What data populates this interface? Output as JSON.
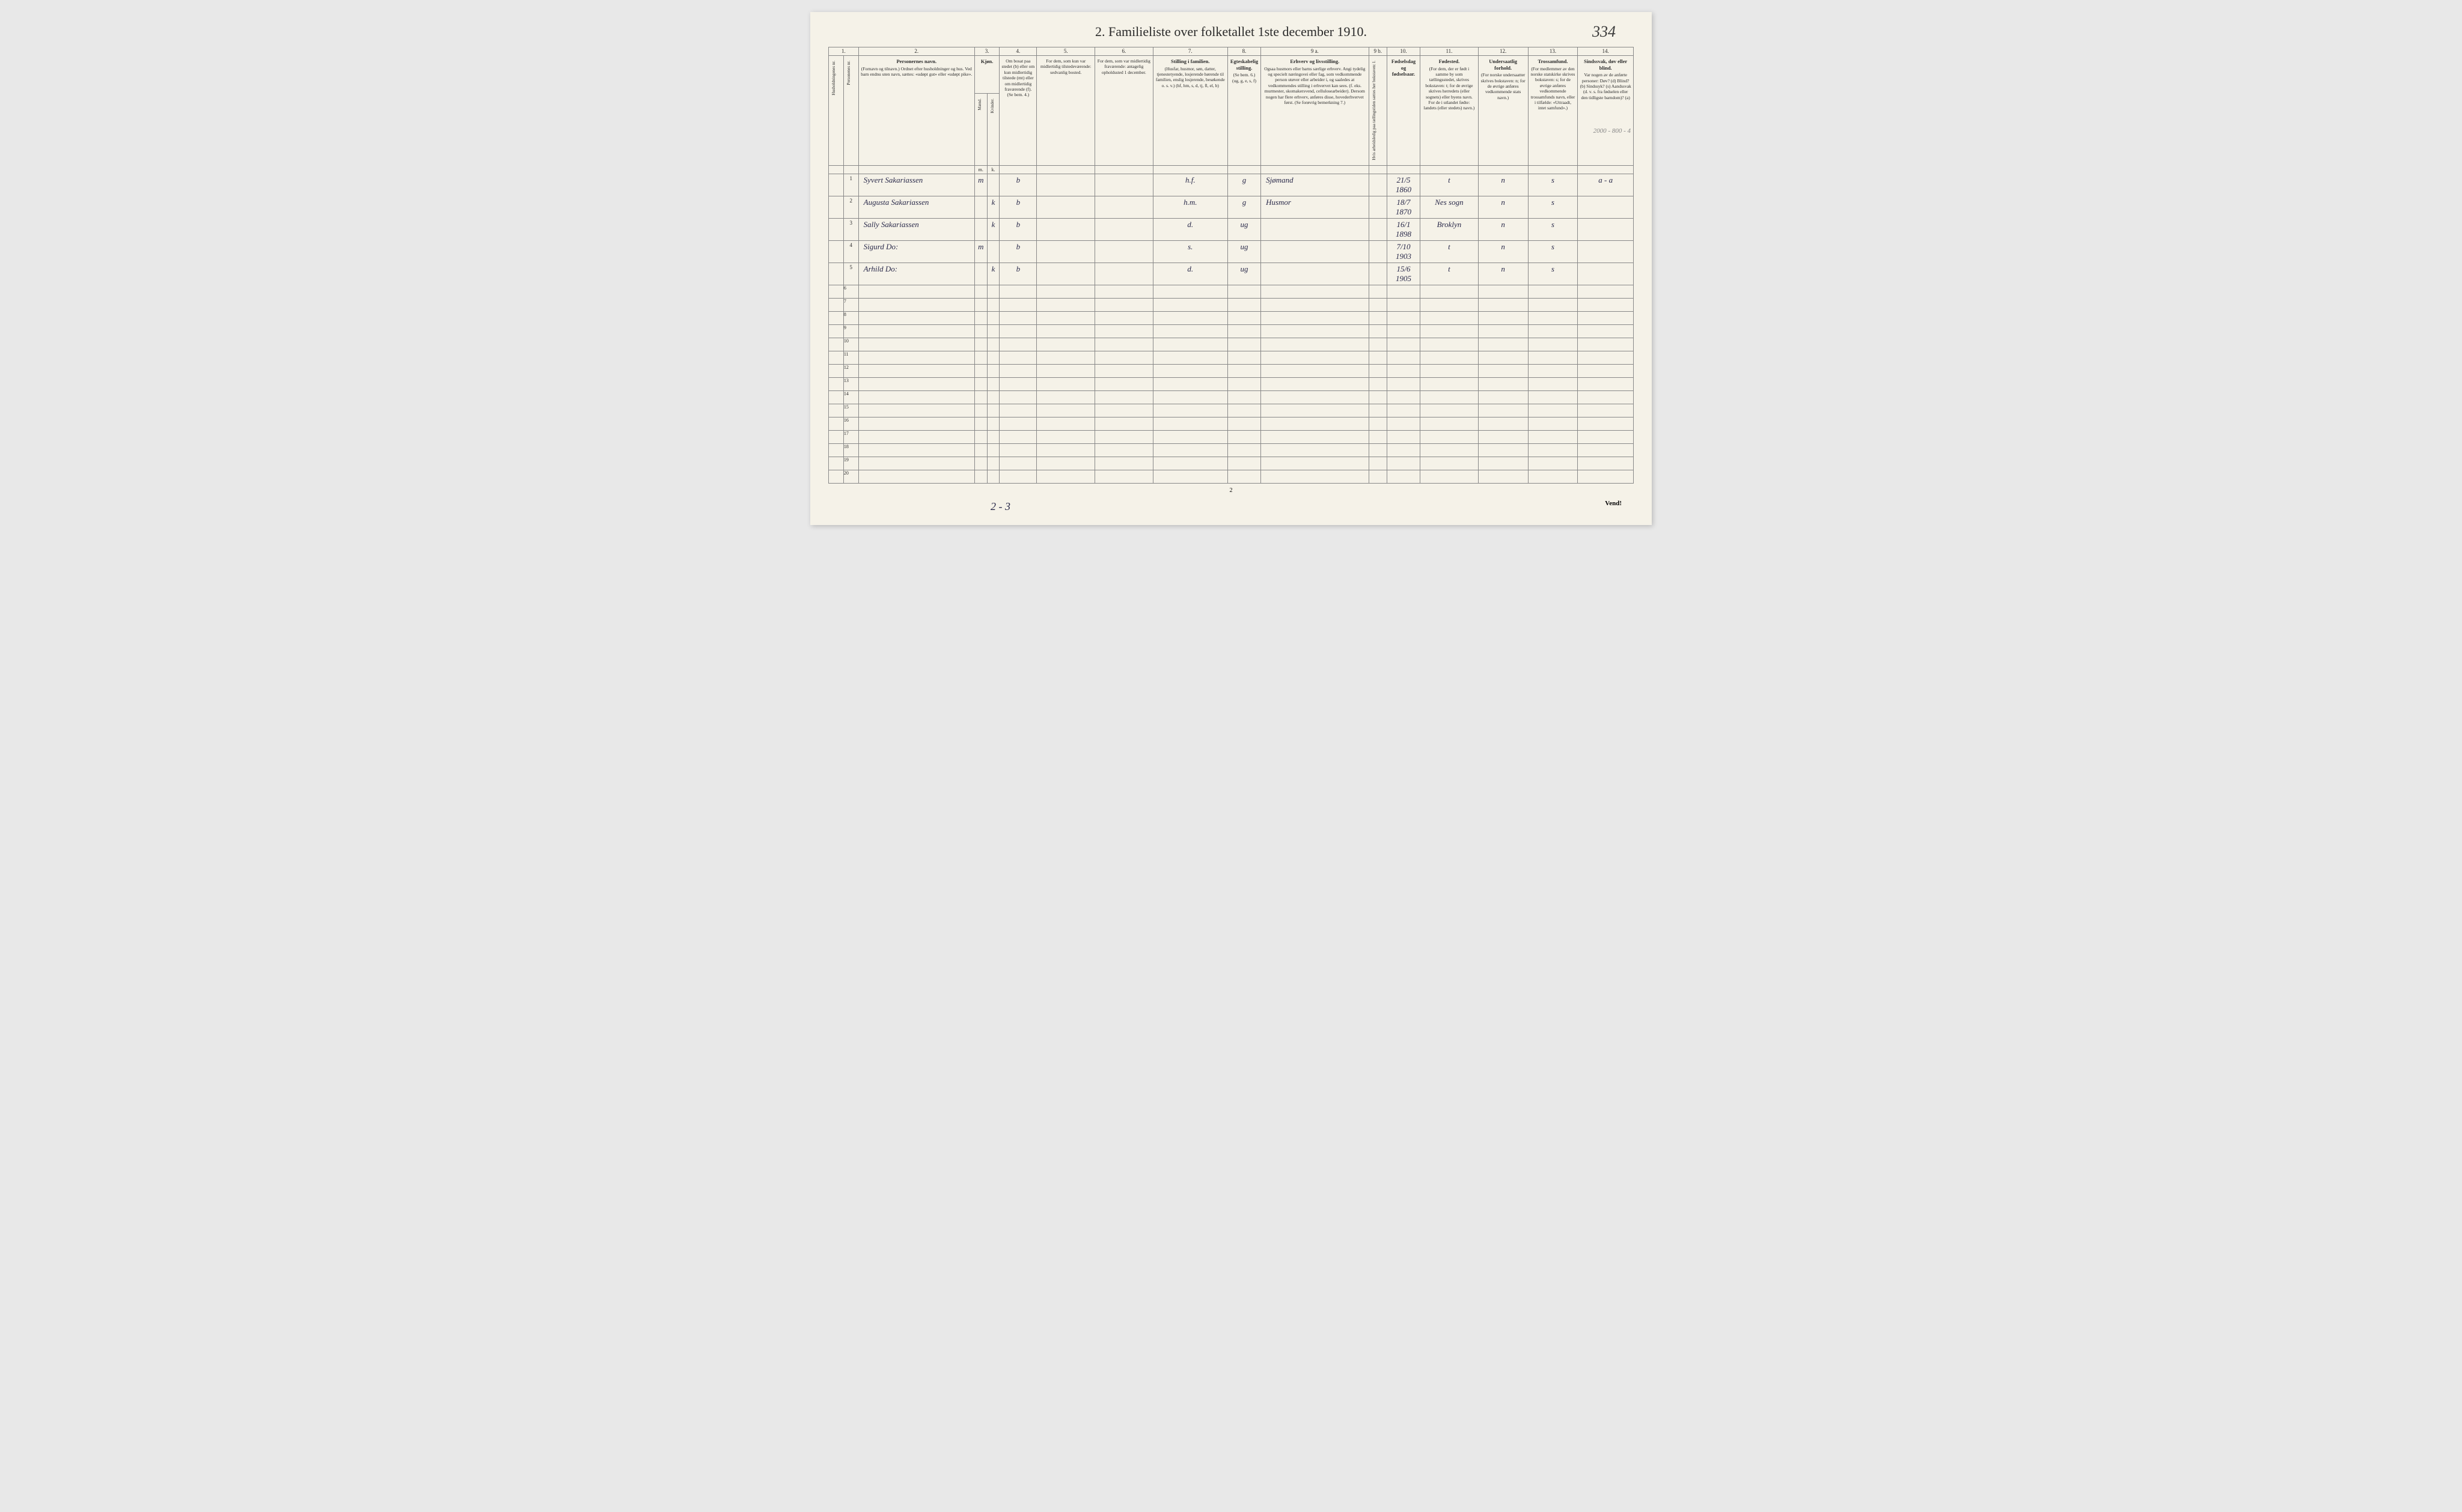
{
  "title": "2.  Familieliste over folketallet 1ste december 1910.",
  "handwritten_page_number": "334",
  "pencil_note_top_right": "2000 - 800 - 4",
  "pencil_note_bottom": "2 - 3",
  "footer_page_num": "2",
  "vend_label": "Vend!",
  "column_numbers": [
    "1.",
    "2.",
    "3.",
    "4.",
    "5.",
    "6.",
    "7.",
    "8.",
    "9 a.",
    "9 b.",
    "10.",
    "11.",
    "12.",
    "13.",
    "14."
  ],
  "headers": {
    "c1": "Husholdningenes nr.",
    "c1b": "Personenes nr.",
    "c2_title": "Personernes navn.",
    "c2_body": "(Fornavn og tilnavn.)\nOrdnet efter husholdninger og hus.\nVed barn endnu uten navn, sættes: «udøpt gut» eller «udøpt pike».",
    "c3_title": "Kjøn.",
    "c3_m": "Mænd.",
    "c3_k": "Kvinder.",
    "c3_sub_m": "m.",
    "c3_sub_k": "k.",
    "c4_body": "Om bosat paa stedet (b) eller om kun midlertidig tilstede (mt) eller om midlertidig fraværende (f).\n(Se bem. 4.)",
    "c5_body": "For dem, som kun var midlertidig tilstedeværende:\nsedvanlig bosted.",
    "c6_body": "For dem, som var midlertidig fraværende:\nantagelig opholdssted 1 december.",
    "c7_title": "Stilling i familien.",
    "c7_body": "(Husfar, husmor, søn, datter, tjenestetyende, losjerende hørende til familien, enslig losjerende, besøkende o. s. v.)\n(hf, hm, s, d, tj, fl, el, b)",
    "c8_title": "Egteskabelig stilling.",
    "c8_body": "(Se bem. 6.)\n(ug, g, e, s, f)",
    "c9a_title": "Erhverv og livsstilling.",
    "c9a_body": "Ogsaa husmors eller barns særlige erhverv. Angi tydelig og specielt næringsvei eller fag, som vedkommende person utøver eller arbeider i, og saaledes at vedkommendes stilling i erhvervet kan sees. (f. eks. murmester, skomakersvend, cellulosearbeider). Dersom nogen har flere erhverv, anføres disse, hovederhvervet først.\n(Se forøvrig bemerkning 7.)",
    "c9b": "Hvis arbeidsledig paa tællingstiden sættes her bokstaven: l.",
    "c10_title": "Fødselsdag og fødselsaar.",
    "c11_title": "Fødested.",
    "c11_body": "(For dem, der er født i samme by som tællingsstedet, skrives bokstaven: t; for de øvrige skrives herredets (eller sognets) eller byens navn. For de i utlandet fødte: landets (eller stedets) navn.)",
    "c12_title": "Undersaatlig forhold.",
    "c12_body": "(For norske undersaatter skrives bokstaven: n; for de øvrige anføres vedkommende stats navn.)",
    "c13_title": "Trossamfund.",
    "c13_body": "(For medlemmer av den norske statskirke skrives bokstaven: s; for de øvrige anføres vedkommende trossamfunds navn, eller i tilfælde: «Uttraadt, intet samfund».)",
    "c14_title": "Sindssvak, døv eller blind.",
    "c14_body": "Var nogen av de anførte personer:\nDøv?      (d)\nBlind?    (b)\nSindssyk? (s)\nAandssvak (d. v. s. fra fødselen eller den tidligste barndom)? (a)"
  },
  "rows": [
    {
      "num": "1",
      "name": "Syvert Sakariassen",
      "m": "m",
      "k": "",
      "b": "b",
      "c5": "",
      "c6": "",
      "fam": "h.f.",
      "eg": "g",
      "erhverv": "Sjømand",
      "c9b": "",
      "dob": "21/5 1860",
      "sted": "t",
      "und": "n",
      "tro": "s",
      "c14": "a - a"
    },
    {
      "num": "2",
      "name": "Augusta Sakariassen",
      "m": "",
      "k": "k",
      "b": "b",
      "c5": "",
      "c6": "",
      "fam": "h.m.",
      "eg": "g",
      "erhverv": "Husmor",
      "c9b": "",
      "dob": "18/7 1870",
      "sted": "Nes sogn",
      "und": "n",
      "tro": "s",
      "c14": ""
    },
    {
      "num": "3",
      "name": "Sally Sakariassen",
      "m": "",
      "k": "k",
      "b": "b",
      "c5": "",
      "c6": "",
      "fam": "d.",
      "eg": "ug",
      "erhverv": "",
      "c9b": "",
      "dob": "16/1 1898",
      "sted": "Broklyn",
      "und": "n",
      "tro": "s",
      "c14": ""
    },
    {
      "num": "4",
      "name": "Sigurd      Do:",
      "m": "m",
      "k": "",
      "b": "b",
      "c5": "",
      "c6": "",
      "fam": "s.",
      "eg": "ug",
      "erhverv": "",
      "c9b": "",
      "dob": "7/10 1903",
      "sted": "t",
      "und": "n",
      "tro": "s",
      "c14": ""
    },
    {
      "num": "5",
      "name": "Arhild      Do:",
      "m": "",
      "k": "k",
      "b": "b",
      "c5": "",
      "c6": "",
      "fam": "d.",
      "eg": "ug",
      "erhverv": "",
      "c9b": "",
      "dob": "15/6 1905",
      "sted": "t",
      "und": "n",
      "tro": "s",
      "c14": ""
    }
  ],
  "empty_rows_start": 6,
  "empty_rows_end": 20
}
